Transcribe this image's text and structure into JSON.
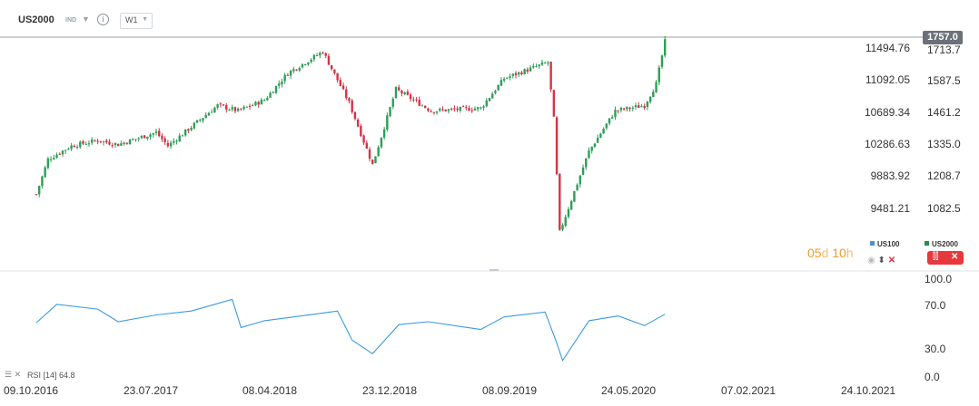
{
  "header": {
    "symbol": "US2000",
    "type": "IND",
    "timeframe": "W1",
    "info": "i"
  },
  "price_badge": "1757.0",
  "countdown": {
    "days": "05",
    "days_unit": "d",
    "hours": "10",
    "hours_unit": "h"
  },
  "legend": {
    "us100": "US100",
    "us2000": "US2000"
  },
  "rsi_label": "RSI [14]  64.8",
  "colors": {
    "up": "#2e9e57",
    "down": "#d63344",
    "rsi": "#3b9be0",
    "badge": "#6b7179",
    "countdown": "#f29a2e"
  },
  "chart_data": [
    {
      "type": "candlestick",
      "title": "US2000",
      "timeframe": "W1",
      "y_left_ticks": [
        "11494.76",
        "11092.05",
        "10689.34",
        "10286.63",
        "9883.92",
        "9481.21"
      ],
      "y_right_ticks": [
        "1713.7",
        "1587.5",
        "1461.2",
        "1335.0",
        "1208.7",
        "1082.5"
      ],
      "last_price": 1757.0,
      "ylim_right": [
        1020,
        1770
      ],
      "x_ticks": [
        "09.10.2016",
        "23.07.2017",
        "08.04.2018",
        "23.12.2018",
        "08.09.2019",
        "24.05.2020",
        "07.02.2021",
        "24.10.2021"
      ],
      "trend_close": [
        {
          "x": "09.10.2016",
          "y": 1190
        },
        {
          "x": "06.11.2016",
          "y": 1320
        },
        {
          "x": "01.01.2017",
          "y": 1370
        },
        {
          "x": "05.03.2017",
          "y": 1390
        },
        {
          "x": "23.04.2017",
          "y": 1375
        },
        {
          "x": "23.07.2017",
          "y": 1420
        },
        {
          "x": "20.08.2017",
          "y": 1370
        },
        {
          "x": "17.12.2017",
          "y": 1520
        },
        {
          "x": "04.02.2018",
          "y": 1500
        },
        {
          "x": "08.04.2018",
          "y": 1540
        },
        {
          "x": "03.06.2018",
          "y": 1640
        },
        {
          "x": "26.08.2018",
          "y": 1720
        },
        {
          "x": "28.10.2018",
          "y": 1530
        },
        {
          "x": "23.12.2018",
          "y": 1300
        },
        {
          "x": "17.02.2019",
          "y": 1580
        },
        {
          "x": "12.05.2019",
          "y": 1500
        },
        {
          "x": "08.09.2019",
          "y": 1510
        },
        {
          "x": "03.11.2019",
          "y": 1620
        },
        {
          "x": "16.02.2020",
          "y": 1680
        },
        {
          "x": "01.03.2020",
          "y": 1470
        },
        {
          "x": "15.03.2020",
          "y": 1050
        },
        {
          "x": "24.05.2020",
          "y": 1350
        },
        {
          "x": "26.07.2020",
          "y": 1500
        },
        {
          "x": "04.10.2020",
          "y": 1520
        },
        {
          "x": "01.11.2020",
          "y": 1600
        },
        {
          "x": "22.11.2020",
          "y": 1757
        }
      ]
    },
    {
      "type": "line",
      "title": "RSI [14]",
      "last_value": 64.8,
      "y_ticks": [
        "100.0",
        "70.0",
        "30.0",
        "0.0"
      ],
      "ylim": [
        0,
        100
      ],
      "points": [
        {
          "x": "09.10.2016",
          "y": 56
        },
        {
          "x": "27.11.2016",
          "y": 75
        },
        {
          "x": "05.03.2017",
          "y": 70
        },
        {
          "x": "23.04.2017",
          "y": 57
        },
        {
          "x": "23.07.2017",
          "y": 64
        },
        {
          "x": "15.10.2017",
          "y": 68
        },
        {
          "x": "10.12.2017",
          "y": 75
        },
        {
          "x": "21.01.2018",
          "y": 80
        },
        {
          "x": "11.02.2018",
          "y": 51
        },
        {
          "x": "08.04.2018",
          "y": 58
        },
        {
          "x": "26.08.2018",
          "y": 66
        },
        {
          "x": "30.09.2018",
          "y": 68
        },
        {
          "x": "04.11.2018",
          "y": 38
        },
        {
          "x": "23.12.2018",
          "y": 24
        },
        {
          "x": "24.02.2019",
          "y": 54
        },
        {
          "x": "05.05.2019",
          "y": 57
        },
        {
          "x": "08.09.2019",
          "y": 49
        },
        {
          "x": "03.11.2019",
          "y": 62
        },
        {
          "x": "09.02.2020",
          "y": 67
        },
        {
          "x": "08.03.2020",
          "y": 35
        },
        {
          "x": "22.03.2020",
          "y": 17
        },
        {
          "x": "24.05.2020",
          "y": 58
        },
        {
          "x": "02.08.2020",
          "y": 63
        },
        {
          "x": "04.10.2020",
          "y": 53
        },
        {
          "x": "22.11.2020",
          "y": 64.8
        }
      ]
    }
  ]
}
